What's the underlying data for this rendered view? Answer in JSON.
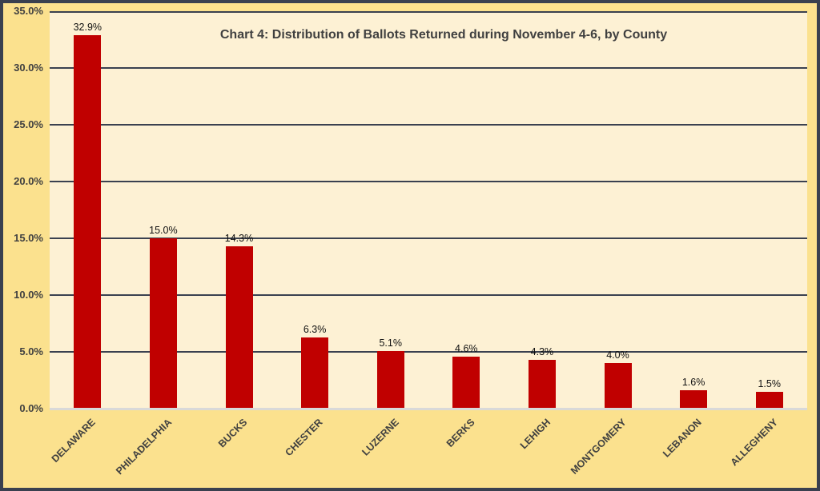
{
  "chart_data": {
    "type": "bar",
    "title": "Chart 4: Distribution of Ballots Returned during November 4-6, by County",
    "categories": [
      "DELAWARE",
      "PHILADELPHIA",
      "BUCKS",
      "CHESTER",
      "LUZERNE",
      "BERKS",
      "LEHIGH",
      "MONTGOMERY",
      "LEBANON",
      "ALLEGHENY"
    ],
    "values": [
      32.9,
      15.0,
      14.3,
      6.3,
      5.1,
      4.6,
      4.3,
      4.0,
      1.6,
      1.5
    ],
    "data_labels": [
      "32.9%",
      "15.0%",
      "14.3%",
      "6.3%",
      "5.1%",
      "4.6%",
      "4.3%",
      "4.0%",
      "1.6%",
      "1.5%"
    ],
    "xlabel": "",
    "ylabel": "",
    "ylim": [
      0,
      35
    ],
    "ytick_step": 5,
    "ytick_labels": [
      "0.0%",
      "5.0%",
      "10.0%",
      "15.0%",
      "20.0%",
      "25.0%",
      "30.0%",
      "35.0%"
    ],
    "grid": true,
    "legend": "none",
    "colors": {
      "bar": "#C00000",
      "plot_background": "#FDF1D4",
      "outer_background": "#FBE18E",
      "frame_border": "#39404F",
      "gridline": "#3A4150",
      "baseline": "#D9D9D9",
      "axis_text": "#404040",
      "data_label_text": "#111111",
      "title_text": "#404040"
    }
  }
}
